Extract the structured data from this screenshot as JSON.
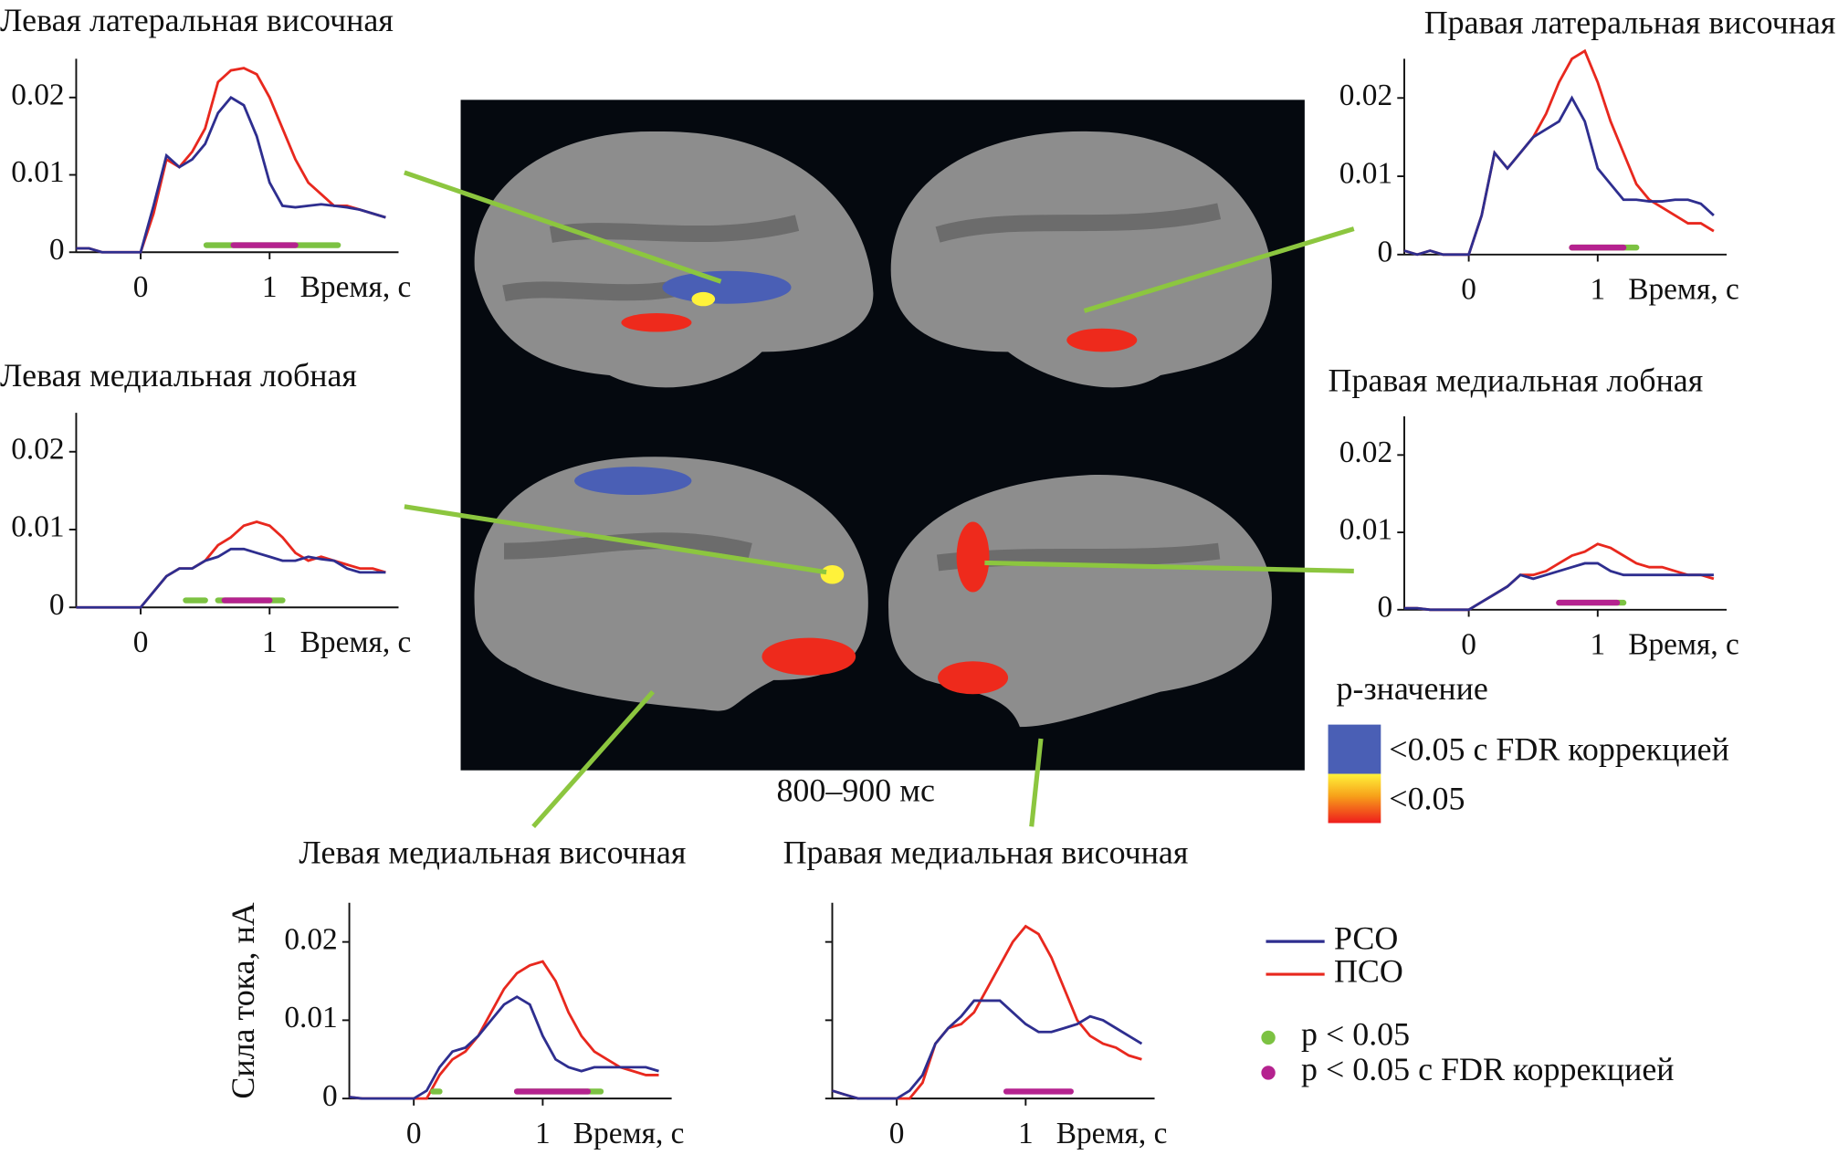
{
  "chart_data": [
    {
      "type": "line",
      "title": "Левая латеральная височная",
      "xlabel": "Время, с",
      "x": [
        -0.5,
        -0.4,
        -0.3,
        -0.2,
        -0.1,
        0,
        0.1,
        0.2,
        0.3,
        0.4,
        0.5,
        0.6,
        0.7,
        0.8,
        0.9,
        1,
        1.1,
        1.2,
        1.3,
        1.4,
        1.5,
        1.6,
        1.7,
        1.8,
        1.9
      ],
      "series": [
        {
          "color": "#e8281e",
          "values": [
            0.0005,
            0.0005,
            0,
            0,
            0,
            0,
            0.005,
            0.012,
            0.011,
            0.013,
            0.016,
            0.022,
            0.0235,
            0.0238,
            0.023,
            0.02,
            0.016,
            0.012,
            0.009,
            0.0075,
            0.006,
            0.006,
            0.0055,
            0.005,
            0.0045
          ]
        },
        {
          "color": "#2e2e8f",
          "values": [
            0.0005,
            0.0005,
            0,
            0,
            0,
            0,
            0.006,
            0.0125,
            0.011,
            0.012,
            0.014,
            0.018,
            0.02,
            0.019,
            0.015,
            0.009,
            0.006,
            0.0058,
            0.006,
            0.0062,
            0.006,
            0.0058,
            0.0055,
            0.005,
            0.0045
          ]
        }
      ],
      "significance": [
        {
          "color": "#7cc242",
          "from": 0.51,
          "to": 1.53
        },
        {
          "color": "#b5228f",
          "from": 0.72,
          "to": 1.2
        }
      ],
      "xlim": [
        -0.5,
        2
      ],
      "ylim": [
        0,
        0.025
      ],
      "xticks": [
        0,
        1
      ],
      "yticks": [
        0,
        0.01,
        0.02
      ]
    },
    {
      "type": "line",
      "title": "Правая  латеральная височная",
      "xlabel": "Время, с",
      "x": [
        -0.5,
        -0.4,
        -0.3,
        -0.2,
        -0.1,
        0,
        0.1,
        0.2,
        0.3,
        0.4,
        0.5,
        0.6,
        0.7,
        0.8,
        0.9,
        1,
        1.1,
        1.2,
        1.3,
        1.4,
        1.5,
        1.6,
        1.7,
        1.8,
        1.9
      ],
      "series": [
        {
          "color": "#e8281e",
          "values": [
            0.0005,
            0,
            0.0005,
            0,
            0,
            0,
            0.005,
            0.013,
            0.011,
            0.013,
            0.015,
            0.018,
            0.022,
            0.025,
            0.026,
            0.022,
            0.017,
            0.013,
            0.009,
            0.007,
            0.006,
            0.005,
            0.004,
            0.004,
            0.003
          ]
        },
        {
          "color": "#2e2e8f",
          "values": [
            0.0005,
            0,
            0.0005,
            0,
            0,
            0,
            0.005,
            0.013,
            0.011,
            0.013,
            0.015,
            0.016,
            0.017,
            0.02,
            0.017,
            0.011,
            0.009,
            0.007,
            0.007,
            0.0068,
            0.0068,
            0.007,
            0.007,
            0.0065,
            0.005
          ]
        }
      ],
      "significance": [
        {
          "color": "#7cc242",
          "from": 0.8,
          "to": 1.3
        },
        {
          "color": "#b5228f",
          "from": 0.8,
          "to": 1.2
        }
      ],
      "xlim": [
        -0.5,
        2
      ],
      "ylim": [
        0,
        0.025
      ],
      "xticks": [
        0,
        1
      ],
      "yticks": [
        0,
        0.01,
        0.02
      ]
    },
    {
      "type": "line",
      "title": "Левая медиальная лобная",
      "xlabel": "Время, с",
      "x": [
        -0.5,
        -0.4,
        -0.3,
        -0.2,
        -0.1,
        0,
        0.1,
        0.2,
        0.3,
        0.4,
        0.5,
        0.6,
        0.7,
        0.8,
        0.9,
        1,
        1.1,
        1.2,
        1.3,
        1.4,
        1.5,
        1.6,
        1.7,
        1.8,
        1.9
      ],
      "series": [
        {
          "color": "#e8281e",
          "values": [
            0,
            0,
            0,
            0,
            0,
            0,
            0.002,
            0.004,
            0.005,
            0.005,
            0.006,
            0.008,
            0.009,
            0.0105,
            0.011,
            0.0105,
            0.009,
            0.007,
            0.006,
            0.0065,
            0.006,
            0.0055,
            0.005,
            0.005,
            0.0045
          ]
        },
        {
          "color": "#2e2e8f",
          "values": [
            0,
            0,
            0,
            0,
            0,
            0,
            0.002,
            0.004,
            0.005,
            0.005,
            0.006,
            0.0065,
            0.0075,
            0.0075,
            0.007,
            0.0065,
            0.006,
            0.006,
            0.0065,
            0.0062,
            0.006,
            0.005,
            0.0045,
            0.0045,
            0.0045
          ]
        }
      ],
      "significance": [
        {
          "color": "#7cc242",
          "from": 0.35,
          "to": 0.5
        },
        {
          "color": "#7cc242",
          "from": 0.6,
          "to": 1.1
        },
        {
          "color": "#b5228f",
          "from": 0.65,
          "to": 1.0
        }
      ],
      "xlim": [
        -0.5,
        2
      ],
      "ylim": [
        0,
        0.025
      ],
      "xticks": [
        0,
        1
      ],
      "yticks": [
        0,
        0.01,
        0.02
      ]
    },
    {
      "type": "line",
      "title": "Правая медиальная лобная",
      "xlabel": "Время, с",
      "x": [
        -0.5,
        -0.4,
        -0.3,
        -0.2,
        -0.1,
        0,
        0.1,
        0.2,
        0.3,
        0.4,
        0.5,
        0.6,
        0.7,
        0.8,
        0.9,
        1,
        1.1,
        1.2,
        1.3,
        1.4,
        1.5,
        1.6,
        1.7,
        1.8,
        1.9
      ],
      "series": [
        {
          "color": "#e8281e",
          "values": [
            0.0002,
            0.0002,
            0,
            0,
            0,
            0,
            0.001,
            0.002,
            0.003,
            0.0045,
            0.0045,
            0.005,
            0.006,
            0.007,
            0.0075,
            0.0085,
            0.008,
            0.007,
            0.006,
            0.0055,
            0.0055,
            0.005,
            0.0045,
            0.0045,
            0.004
          ]
        },
        {
          "color": "#2e2e8f",
          "values": [
            0.0002,
            0.0002,
            0,
            0,
            0,
            0,
            0.001,
            0.002,
            0.003,
            0.0045,
            0.004,
            0.0045,
            0.005,
            0.0055,
            0.006,
            0.006,
            0.005,
            0.0045,
            0.0045,
            0.0045,
            0.0045,
            0.0045,
            0.0045,
            0.0045,
            0.0045
          ]
        }
      ],
      "significance": [
        {
          "color": "#7cc242",
          "from": 0.7,
          "to": 1.2
        },
        {
          "color": "#b5228f",
          "from": 0.7,
          "to": 1.15
        }
      ],
      "xlim": [
        -0.5,
        2
      ],
      "ylim": [
        0,
        0.025
      ],
      "xticks": [
        0,
        1
      ],
      "yticks": [
        0,
        0.01,
        0.02
      ]
    },
    {
      "type": "line",
      "title": "Левая медиальная височная",
      "xlabel": "Время, с",
      "ylabel": "Сила тока, нА",
      "x": [
        -0.5,
        -0.4,
        -0.3,
        -0.2,
        -0.1,
        0,
        0.1,
        0.2,
        0.3,
        0.4,
        0.5,
        0.6,
        0.7,
        0.8,
        0.9,
        1,
        1.1,
        1.2,
        1.3,
        1.4,
        1.5,
        1.6,
        1.7,
        1.8,
        1.9
      ],
      "series": [
        {
          "color": "#e8281e",
          "values": [
            0.0002,
            0,
            0,
            0,
            0,
            0,
            0,
            0.003,
            0.005,
            0.006,
            0.008,
            0.011,
            0.014,
            0.016,
            0.017,
            0.0175,
            0.015,
            0.011,
            0.008,
            0.006,
            0.005,
            0.004,
            0.0035,
            0.003,
            0.003
          ]
        },
        {
          "color": "#2e2e8f",
          "values": [
            0.0002,
            0,
            0,
            0,
            0,
            0,
            0.001,
            0.004,
            0.006,
            0.0065,
            0.008,
            0.01,
            0.012,
            0.013,
            0.012,
            0.008,
            0.005,
            0.004,
            0.0035,
            0.004,
            0.004,
            0.004,
            0.004,
            0.004,
            0.0035
          ]
        }
      ],
      "significance": [
        {
          "color": "#7cc242",
          "from": 0.15,
          "to": 0.2
        },
        {
          "color": "#7cc242",
          "from": 0.8,
          "to": 1.45
        },
        {
          "color": "#b5228f",
          "from": 0.8,
          "to": 1.35
        }
      ],
      "xlim": [
        -0.5,
        2
      ],
      "ylim": [
        0,
        0.025
      ],
      "xticks": [
        0,
        1
      ],
      "yticks": [
        0,
        0.01,
        0.02
      ]
    },
    {
      "type": "line",
      "title": "Правая медиальная височная",
      "xlabel": "Время, с",
      "ytick_labels": false,
      "x": [
        -0.5,
        -0.4,
        -0.3,
        -0.2,
        -0.1,
        0,
        0.1,
        0.2,
        0.3,
        0.4,
        0.5,
        0.6,
        0.7,
        0.8,
        0.9,
        1,
        1.1,
        1.2,
        1.3,
        1.4,
        1.5,
        1.6,
        1.7,
        1.8,
        1.9
      ],
      "series": [
        {
          "color": "#e8281e",
          "values": [
            0.001,
            0.0005,
            0,
            0,
            0,
            0,
            0,
            0.002,
            0.007,
            0.009,
            0.0095,
            0.011,
            0.014,
            0.017,
            0.02,
            0.022,
            0.021,
            0.018,
            0.014,
            0.01,
            0.008,
            0.007,
            0.0065,
            0.0055,
            0.005
          ]
        },
        {
          "color": "#2e2e8f",
          "values": [
            0.001,
            0.0005,
            0,
            0,
            0,
            0,
            0.001,
            0.003,
            0.007,
            0.009,
            0.0105,
            0.0125,
            0.0125,
            0.0125,
            0.011,
            0.0095,
            0.0085,
            0.0085,
            0.009,
            0.0095,
            0.0105,
            0.01,
            0.009,
            0.008,
            0.007
          ]
        }
      ],
      "significance": [
        {
          "color": "#b5228f",
          "from": 0.85,
          "to": 1.35
        }
      ],
      "xlim": [
        -0.5,
        2
      ],
      "ylim": [
        0,
        0.025
      ],
      "xticks": [
        0,
        1
      ],
      "yticks": [
        0,
        0.01,
        0.02
      ]
    }
  ],
  "brain": {
    "caption": "800–900 мс"
  },
  "legend": {
    "series": [
      {
        "name": "РСО",
        "color": "#2e2e8f"
      },
      {
        "name": "ПСО",
        "color": "#e8281e"
      }
    ],
    "significance": [
      {
        "label": "p < 0.05",
        "color": "#7cc242"
      },
      {
        "label": "p < 0.05 с FDR коррекцией",
        "color": "#b5228f"
      }
    ],
    "pvalue": {
      "title": "p-значение",
      "items": [
        {
          "label": "<0.05 с FDR коррекцией",
          "color": "#4a5fb5"
        },
        {
          "label": "<0.05",
          "color": "#ee2a1c"
        }
      ]
    }
  }
}
